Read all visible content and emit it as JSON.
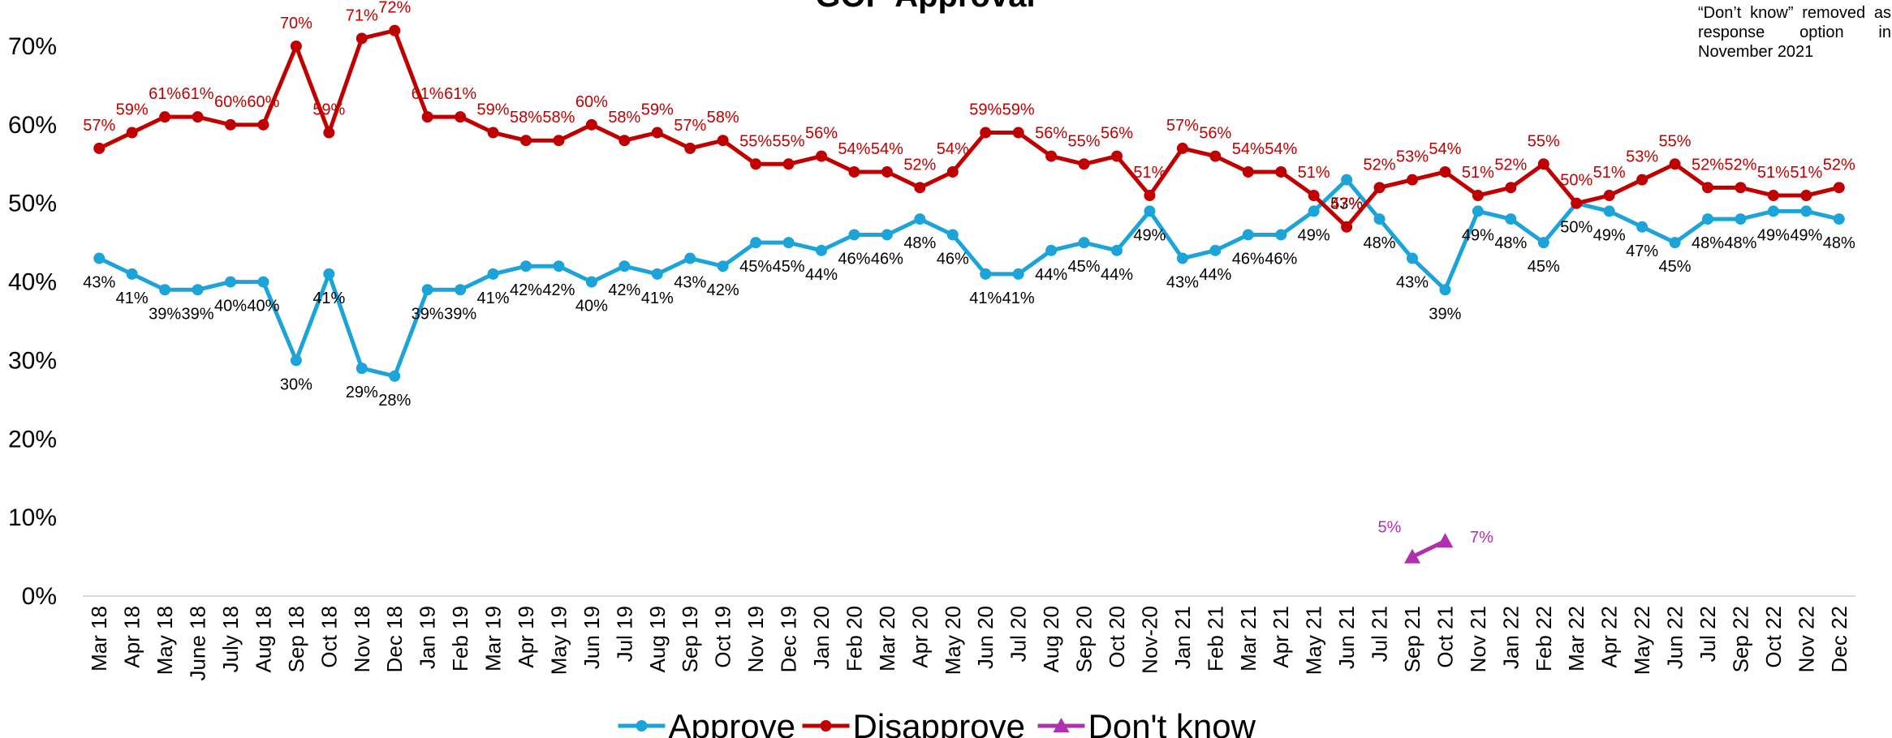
{
  "chart_data": {
    "type": "line",
    "title": "GOP Approval",
    "annotations": [
      "“Don’t know” removed as response option in November 2021"
    ],
    "categories": [
      "Mar 18",
      "Apr 18",
      "May 18",
      "June 18",
      "July 18",
      "Aug 18",
      "Sep 18",
      "Oct 18",
      "Nov 18",
      "Dec 18",
      "Jan 19",
      "Feb 19",
      "Mar 19",
      "Apr 19",
      "May 19",
      "Jun 19",
      "Jul 19",
      "Aug 19",
      "Sep 19",
      "Oct 19",
      "Nov 19",
      "Dec 19",
      "Jan 20",
      "Feb 20",
      "Mar 20",
      "Apr 20",
      "May 20",
      "Jun 20",
      "Jul 20",
      "Aug 20",
      "Sep 20",
      "Oct 20",
      "Nov-20",
      "Jan 21",
      "Feb 21",
      "Mar 21",
      "Apr 21",
      "May 21",
      "Jun 21",
      "Jul 21",
      "Sep 21",
      "Oct 21",
      "Nov 21",
      "Jan 22",
      "Feb 22",
      "Mar 22",
      "Apr 22",
      "May 22",
      "Jun 22",
      "Jul 22",
      "Sep 22",
      "Oct 22",
      "Nov 22",
      "Dec 22"
    ],
    "series": [
      {
        "name": "Approve",
        "color": "#1ca3d8",
        "marker": "circle",
        "values": [
          43,
          41,
          39,
          39,
          40,
          40,
          30,
          41,
          29,
          28,
          39,
          39,
          41,
          42,
          42,
          40,
          42,
          41,
          43,
          42,
          45,
          45,
          44,
          46,
          46,
          48,
          46,
          41,
          41,
          44,
          45,
          44,
          49,
          43,
          44,
          46,
          46,
          49,
          53,
          48,
          43,
          39,
          49,
          48,
          45,
          50,
          49,
          47,
          45,
          48,
          48,
          49,
          49,
          48
        ],
        "value_labels": [
          "43%",
          "41%",
          "39%",
          "39%",
          "40%",
          "40%",
          "30%",
          "41%",
          "29%",
          "28%",
          "39%",
          "39%",
          "41%",
          "42%",
          "42%",
          "40%",
          "42%",
          "41%",
          "43%",
          "42%",
          "45%",
          "45%",
          "44%",
          "46%",
          "46%",
          "48%",
          "46%",
          "41%",
          "41%",
          "44%",
          "45%",
          "44%",
          "49%",
          "43%",
          "44%",
          "46%",
          "46%",
          "49%",
          "53%",
          "48%",
          "43%",
          "39%",
          "49%",
          "48%",
          "45%",
          "50%",
          "49%",
          "47%",
          "45%",
          "48%",
          "48%",
          "49%",
          "49%",
          "48%"
        ]
      },
      {
        "name": "Disapprove",
        "color": "#c00000",
        "marker": "circle",
        "values": [
          57,
          59,
          61,
          61,
          60,
          60,
          70,
          59,
          71,
          72,
          61,
          61,
          59,
          58,
          58,
          60,
          58,
          59,
          57,
          58,
          55,
          55,
          56,
          54,
          54,
          52,
          54,
          59,
          59,
          56,
          55,
          56,
          51,
          57,
          56,
          54,
          54,
          51,
          47,
          52,
          53,
          54,
          51,
          52,
          55,
          50,
          51,
          53,
          55,
          52,
          52,
          51,
          51,
          52
        ],
        "value_labels": [
          "57%",
          "59%",
          "61%",
          "61%",
          "60%",
          "60%",
          "70%",
          "59%",
          "71%",
          "72%",
          "61%",
          "61%",
          "59%",
          "58%",
          "58%",
          "60%",
          "58%",
          "59%",
          "57%",
          "58%",
          "55%",
          "55%",
          "56%",
          "54%",
          "54%",
          "52%",
          "54%",
          "59%",
          "59%",
          "56%",
          "55%",
          "56%",
          "51%",
          "57%",
          "56%",
          "54%",
          "54%",
          "51%",
          "47%",
          "52%",
          "53%",
          "54%",
          "51%",
          "52%",
          "55%",
          "50%",
          "51%",
          "53%",
          "55%",
          "52%",
          "52%",
          "51%",
          "51%",
          "52%"
        ]
      },
      {
        "name": "Don't know",
        "color": "#b030b0",
        "marker": "triangle",
        "values": [
          null,
          null,
          null,
          null,
          null,
          null,
          null,
          null,
          null,
          null,
          null,
          null,
          null,
          null,
          null,
          null,
          null,
          null,
          null,
          null,
          null,
          null,
          null,
          null,
          null,
          null,
          null,
          null,
          null,
          null,
          null,
          null,
          null,
          null,
          null,
          null,
          null,
          null,
          null,
          null,
          5,
          7,
          null,
          null,
          null,
          null,
          null,
          null,
          null,
          null,
          null,
          null,
          null,
          null
        ],
        "value_labels": [
          null,
          null,
          null,
          null,
          null,
          null,
          null,
          null,
          null,
          null,
          null,
          null,
          null,
          null,
          null,
          null,
          null,
          null,
          null,
          null,
          null,
          null,
          null,
          null,
          null,
          null,
          null,
          null,
          null,
          null,
          null,
          null,
          null,
          null,
          null,
          null,
          null,
          null,
          null,
          null,
          "5%",
          "7%",
          null,
          null,
          null,
          null,
          null,
          null,
          null,
          null,
          null,
          null,
          null,
          null
        ]
      }
    ],
    "ylim": [
      0,
      70
    ],
    "yticks": [
      {
        "value": 0,
        "label": "0%"
      },
      {
        "value": 10,
        "label": "10%"
      },
      {
        "value": 20,
        "label": "20%"
      },
      {
        "value": 30,
        "label": "30%"
      },
      {
        "value": 40,
        "label": "40%"
      },
      {
        "value": 50,
        "label": "50%"
      },
      {
        "value": 60,
        "label": "60%"
      },
      {
        "value": 70,
        "label": "70%"
      }
    ],
    "grid": false,
    "legend": "bottom"
  }
}
